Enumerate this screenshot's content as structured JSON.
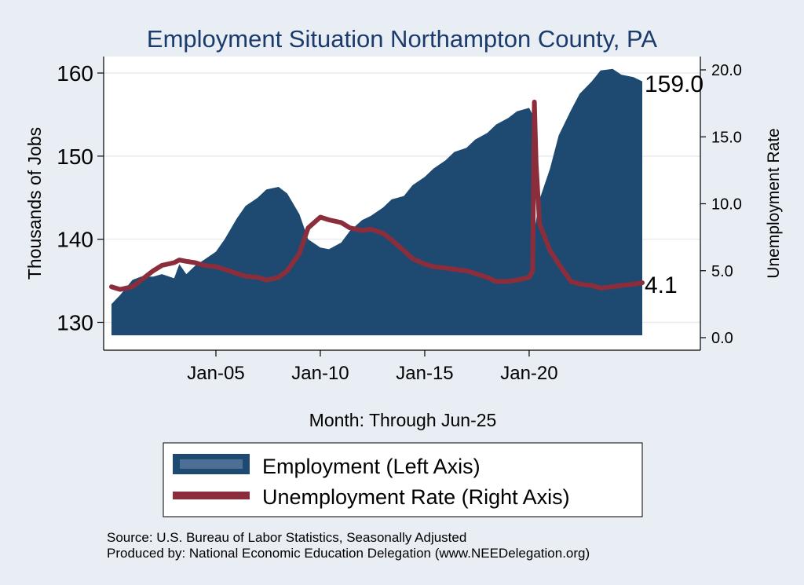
{
  "chart_data": {
    "type": "area",
    "title": "Employment Situation Northampton  County, PA",
    "xlabel": "Month: Through Jun-25",
    "ylabel": "Thousands of Jobs",
    "y2label": "Unemployment Rate",
    "ylim": [
      128.5,
      161.5
    ],
    "y2lim": [
      0,
      20
    ],
    "yticks": [
      130,
      140,
      150,
      160
    ],
    "y2ticks": [
      "0.0",
      "5.0",
      "10.0",
      "15.0",
      "20.0"
    ],
    "xticks": [
      {
        "label": "Jan-05",
        "date": "2005-01"
      },
      {
        "label": "Jan-10",
        "date": "2010-01"
      },
      {
        "label": "Jan-15",
        "date": "2015-01"
      },
      {
        "label": "Jan-20",
        "date": "2020-01"
      }
    ],
    "x_range": [
      "2000-01",
      "2025-06"
    ],
    "grid": true,
    "legend_position": "bottom",
    "colors": {
      "employment": "#1e4a72",
      "employment_legend": "#4d6f95",
      "unemployment": "#8b2d3a",
      "background": "#e9eef4",
      "plot": "#ffffff",
      "title": "#1a3b6b"
    },
    "series": [
      {
        "name": "Employment (Left Axis)",
        "type": "area",
        "axis": "left",
        "points": [
          [
            "2000-01",
            132.2
          ],
          [
            "2000-06",
            133.3
          ],
          [
            "2001-01",
            135.1
          ],
          [
            "2001-06",
            135.5
          ],
          [
            "2002-01",
            135.5
          ],
          [
            "2002-06",
            135.8
          ],
          [
            "2003-01",
            135.3
          ],
          [
            "2003-04",
            137.0
          ],
          [
            "2003-08",
            135.8
          ],
          [
            "2004-01",
            136.8
          ],
          [
            "2004-06",
            137.5
          ],
          [
            "2005-01",
            138.5
          ],
          [
            "2005-06",
            140.0
          ],
          [
            "2006-01",
            142.5
          ],
          [
            "2006-06",
            144.0
          ],
          [
            "2007-01",
            145.0
          ],
          [
            "2007-06",
            146.0
          ],
          [
            "2008-01",
            146.3
          ],
          [
            "2008-06",
            145.5
          ],
          [
            "2009-01",
            143.0
          ],
          [
            "2009-06",
            140.0
          ],
          [
            "2010-01",
            139.0
          ],
          [
            "2010-06",
            138.8
          ],
          [
            "2011-01",
            139.6
          ],
          [
            "2011-06",
            141.0
          ],
          [
            "2012-01",
            142.3
          ],
          [
            "2012-06",
            142.8
          ],
          [
            "2013-01",
            143.8
          ],
          [
            "2013-06",
            144.8
          ],
          [
            "2014-01",
            145.2
          ],
          [
            "2014-06",
            146.5
          ],
          [
            "2015-01",
            147.5
          ],
          [
            "2015-06",
            148.5
          ],
          [
            "2016-01",
            149.5
          ],
          [
            "2016-06",
            150.5
          ],
          [
            "2017-01",
            151.0
          ],
          [
            "2017-06",
            152.0
          ],
          [
            "2018-01",
            152.8
          ],
          [
            "2018-06",
            153.8
          ],
          [
            "2019-01",
            154.6
          ],
          [
            "2019-06",
            155.4
          ],
          [
            "2020-01",
            155.8
          ],
          [
            "2020-03",
            155.0
          ],
          [
            "2020-04",
            141.0
          ],
          [
            "2020-07",
            144.8
          ],
          [
            "2021-01",
            148.5
          ],
          [
            "2021-06",
            152.5
          ],
          [
            "2022-01",
            155.5
          ],
          [
            "2022-06",
            157.5
          ],
          [
            "2023-01",
            159.0
          ],
          [
            "2023-06",
            160.3
          ],
          [
            "2024-01",
            160.5
          ],
          [
            "2024-06",
            159.8
          ],
          [
            "2025-01",
            159.5
          ],
          [
            "2025-06",
            159.0
          ]
        ]
      },
      {
        "name": "Unemployment Rate (Right Axis)",
        "type": "line",
        "axis": "right",
        "points": [
          [
            "2000-01",
            3.8
          ],
          [
            "2000-06",
            3.6
          ],
          [
            "2001-01",
            3.8
          ],
          [
            "2001-06",
            4.3
          ],
          [
            "2002-01",
            5.0
          ],
          [
            "2002-06",
            5.4
          ],
          [
            "2003-01",
            5.6
          ],
          [
            "2003-04",
            5.8
          ],
          [
            "2003-08",
            5.7
          ],
          [
            "2004-01",
            5.6
          ],
          [
            "2004-06",
            5.4
          ],
          [
            "2005-01",
            5.3
          ],
          [
            "2005-06",
            5.1
          ],
          [
            "2006-01",
            4.8
          ],
          [
            "2006-06",
            4.6
          ],
          [
            "2007-01",
            4.5
          ],
          [
            "2007-06",
            4.3
          ],
          [
            "2008-01",
            4.5
          ],
          [
            "2008-06",
            5.0
          ],
          [
            "2009-01",
            6.3
          ],
          [
            "2009-06",
            8.2
          ],
          [
            "2010-01",
            9.0
          ],
          [
            "2010-06",
            8.8
          ],
          [
            "2011-01",
            8.6
          ],
          [
            "2011-06",
            8.2
          ],
          [
            "2012-01",
            8.0
          ],
          [
            "2012-06",
            8.1
          ],
          [
            "2013-01",
            7.8
          ],
          [
            "2013-06",
            7.3
          ],
          [
            "2014-01",
            6.5
          ],
          [
            "2014-06",
            5.9
          ],
          [
            "2015-01",
            5.5
          ],
          [
            "2015-06",
            5.3
          ],
          [
            "2016-01",
            5.2
          ],
          [
            "2016-06",
            5.1
          ],
          [
            "2017-01",
            5.0
          ],
          [
            "2017-06",
            4.8
          ],
          [
            "2018-01",
            4.5
          ],
          [
            "2018-06",
            4.2
          ],
          [
            "2019-01",
            4.2
          ],
          [
            "2019-06",
            4.3
          ],
          [
            "2020-01",
            4.5
          ],
          [
            "2020-03",
            5.0
          ],
          [
            "2020-04",
            17.6
          ],
          [
            "2020-05",
            13.0
          ],
          [
            "2020-07",
            8.5
          ],
          [
            "2021-01",
            6.5
          ],
          [
            "2021-06",
            5.5
          ],
          [
            "2022-01",
            4.2
          ],
          [
            "2022-06",
            4.0
          ],
          [
            "2023-01",
            3.9
          ],
          [
            "2023-06",
            3.7
          ],
          [
            "2024-01",
            3.8
          ],
          [
            "2024-06",
            3.9
          ],
          [
            "2025-01",
            4.0
          ],
          [
            "2025-06",
            4.1
          ]
        ]
      }
    ],
    "annotations": [
      {
        "text": "159.0",
        "series": "Employment (Left Axis)"
      },
      {
        "text": "4.1",
        "series": "Unemployment Rate (Right Axis)"
      }
    ]
  },
  "legend": {
    "items": [
      {
        "label": "Employment (Left Axis)"
      },
      {
        "label": "Unemployment Rate (Right Axis)"
      }
    ]
  },
  "footer": {
    "source": "Source: U.S. Bureau of Labor Statistics, Seasonally Adjusted",
    "produced": "Produced by: National Economic Education Delegation (www.NEEDelegation.org)"
  }
}
